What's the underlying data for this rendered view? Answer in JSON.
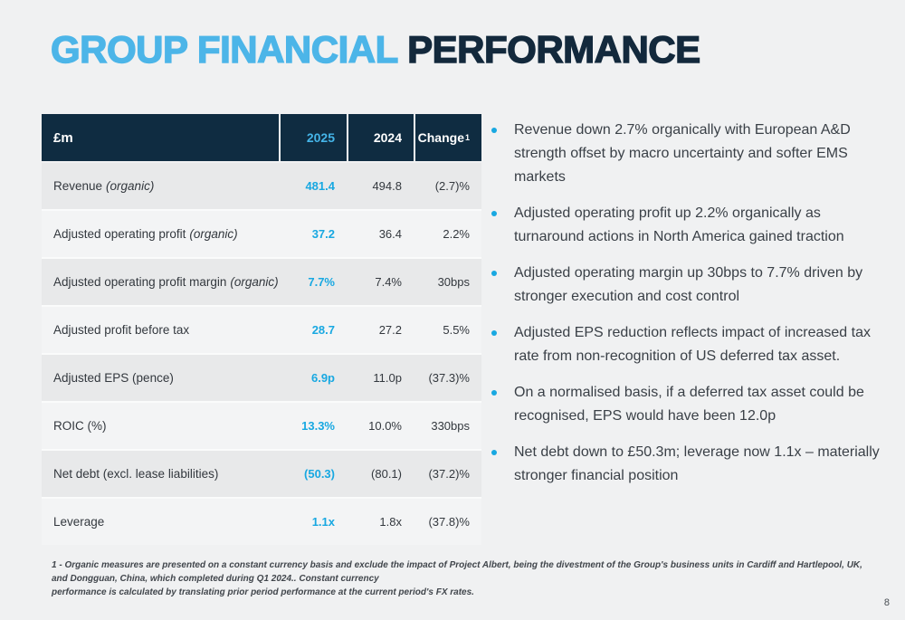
{
  "title": {
    "part1": "GROUP FINANCIAL ",
    "part2": "PERFORMANCE"
  },
  "table": {
    "header": {
      "col0": "£m",
      "col1": "2025",
      "col2": "2024",
      "col3": "Change",
      "col3_sup": "1"
    },
    "rows": [
      {
        "label": "Revenue",
        "label_note": "(organic)",
        "v2025": "481.4",
        "v2024": "494.8",
        "change": "(2.7)%"
      },
      {
        "label": "Adjusted operating profit",
        "label_note": "(organic)",
        "v2025": "37.2",
        "v2024": "36.4",
        "change": "2.2%"
      },
      {
        "label": "Adjusted operating profit margin",
        "label_note": "(organic)",
        "v2025": "7.7%",
        "v2024": "7.4%",
        "change": "30bps"
      },
      {
        "label": "Adjusted profit before tax",
        "label_note": "",
        "v2025": "28.7",
        "v2024": "27.2",
        "change": "5.5%"
      },
      {
        "label": "Adjusted EPS (pence)",
        "label_note": "",
        "v2025": "6.9p",
        "v2024": "11.0p",
        "change": "(37.3)%"
      },
      {
        "label": "ROIC (%)",
        "label_note": "",
        "v2025": "13.3%",
        "v2024": "10.0%",
        "change": "330bps"
      },
      {
        "label": "Net debt (excl. lease liabilities)",
        "label_note": "",
        "v2025": "(50.3)",
        "v2024": "(80.1)",
        "change": "(37.2)%"
      },
      {
        "label": "Leverage",
        "label_note": "",
        "v2025": "1.1x",
        "v2024": "1.8x",
        "change": "(37.8)%"
      }
    ]
  },
  "bullets": [
    "Revenue down 2.7% organically with European A&D strength offset by macro uncertainty and softer EMS markets",
    "Adjusted operating profit up 2.2% organically as turnaround actions in North America gained traction",
    "Adjusted operating margin up 30bps to 7.7% driven by stronger execution and cost control",
    "Adjusted EPS reduction reflects impact of increased tax rate from non-recognition of US deferred tax asset.",
    "On a normalised basis, if a deferred tax asset could be recognised, EPS would have been 12.0p",
    "Net debt down to £50.3m; leverage now 1.1x – materially stronger financial position"
  ],
  "footnote": {
    "line1": "1 - Organic measures are presented on a constant currency basis and exclude the impact of Project Albert, being the divestment of the Group's business units in Cardiff and Hartlepool, UK, and Dongguan, China, which completed during Q1 2024.. Constant currency",
    "line2": "performance is calculated by translating prior period performance at the current period's FX rates."
  },
  "page_number": "8",
  "colors": {
    "bg": "#f0f1f2",
    "title_blue": "#4cb5e8",
    "title_navy": "#13293c",
    "header_navy": "#0f2c41",
    "header_year_blue": "#45b5e8",
    "value_blue": "#18a8e1",
    "row_dark": "#e8e9ea",
    "row_light": "#f3f4f5",
    "separator": "#fafbfb",
    "text_dark": "#33383e",
    "bullet_text": "#3a4047",
    "footnote_color": "#41464c"
  }
}
